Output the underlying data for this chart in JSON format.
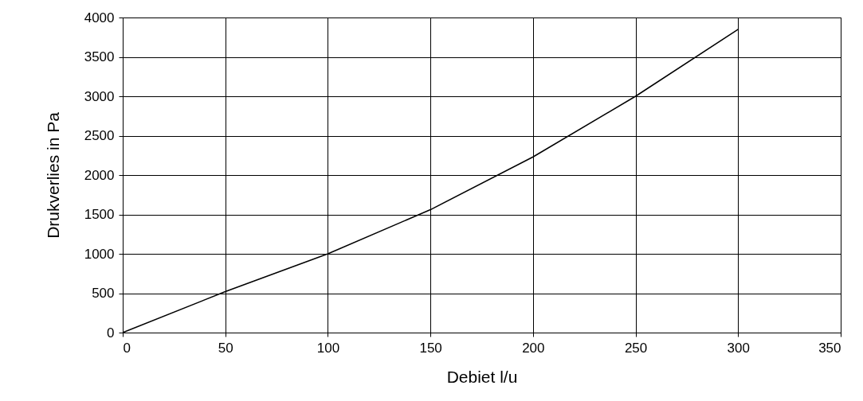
{
  "chart_data": {
    "type": "line",
    "xlabel": "Debiet l/u",
    "ylabel": "Drukverlies in Pa",
    "x": [
      0,
      50,
      100,
      150,
      200,
      250,
      300
    ],
    "series": [
      {
        "color": "#000000",
        "values": [
          0,
          520,
          1000,
          1560,
          2230,
          3000,
          3850
        ]
      }
    ],
    "xlim": [
      0,
      350
    ],
    "xticks": [
      0,
      50,
      100,
      150,
      200,
      250,
      300,
      350
    ],
    "ylim": [
      0,
      4000
    ],
    "yticks": [
      0,
      500,
      1000,
      1500,
      2000,
      2500,
      3000,
      3500,
      4000
    ],
    "grid": true,
    "marker": "none",
    "line_style": "solid"
  }
}
